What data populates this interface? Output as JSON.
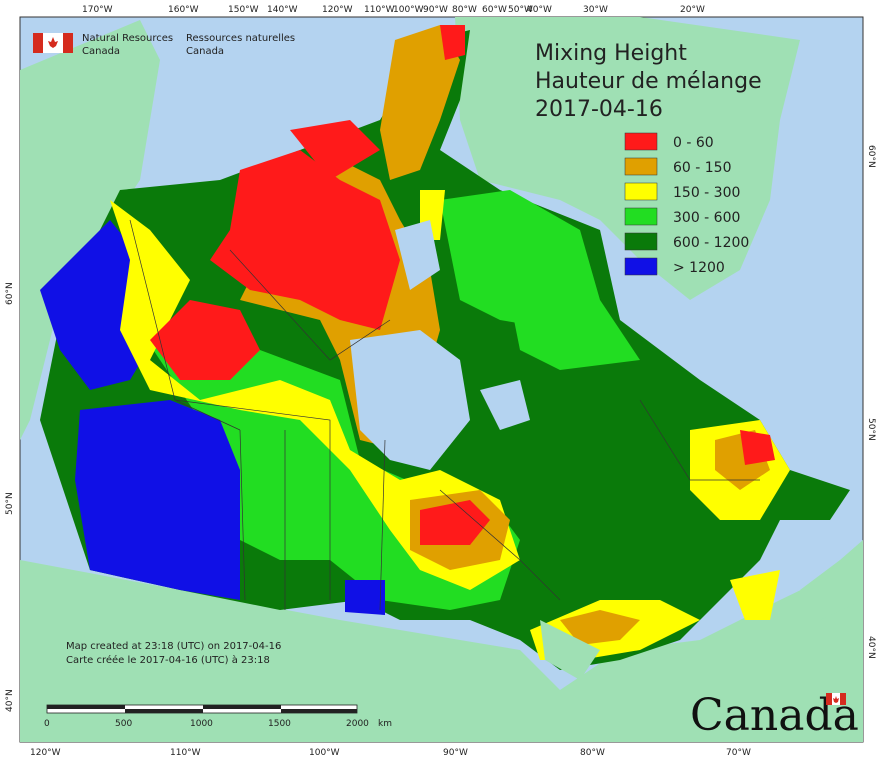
{
  "header": {
    "org_en_line1": "Natural Resources",
    "org_en_line2": "Canada",
    "org_fr_line1": "Ressources naturelles",
    "org_fr_line2": "Canada"
  },
  "title": {
    "line1": "Mixing Height",
    "line2": "Hauteur de mélange",
    "date": "2017-04-16"
  },
  "legend": [
    {
      "label": "0 - 60",
      "color": "#ff1a1a"
    },
    {
      "label": "60 - 150",
      "color": "#e0a000"
    },
    {
      "label": "150 - 300",
      "color": "#ffff00"
    },
    {
      "label": "300 - 600",
      "color": "#22dd22"
    },
    {
      "label": "600 - 1200",
      "color": "#0a7a0a"
    },
    {
      "label": "> 1200",
      "color": "#1010e6"
    }
  ],
  "colors": {
    "ocean": "#b4d3f0",
    "land_other": "#9fe0b4",
    "border": "#444444"
  },
  "axes": {
    "top_ticks": [
      "170°W",
      "160°W",
      "150°W",
      "140°W",
      "120°W",
      "110°W",
      "100°W",
      "90°W",
      "80°W",
      "60°W",
      "50°W",
      "40°W",
      "30°W",
      "20°W"
    ],
    "bottom_ticks": [
      "120°W",
      "110°W",
      "100°W",
      "90°W",
      "80°W",
      "70°W"
    ],
    "left_ticks": [
      "60°N",
      "50°N",
      "40°N"
    ],
    "right_ticks": [
      "60°N",
      "50°N",
      "40°N"
    ]
  },
  "footer": {
    "created_en": "Map created at 23:18 (UTC) on 2017-04-16",
    "created_fr": "Carte créée le 2017-04-16 (UTC) à 23:18"
  },
  "scale_bar": {
    "ticks": [
      "0",
      "500",
      "1000",
      "1500",
      "2000"
    ],
    "unit": "km"
  },
  "wordmark": "Canada",
  "map_labels": {
    "icon_flag": "canada-flag-icon"
  }
}
